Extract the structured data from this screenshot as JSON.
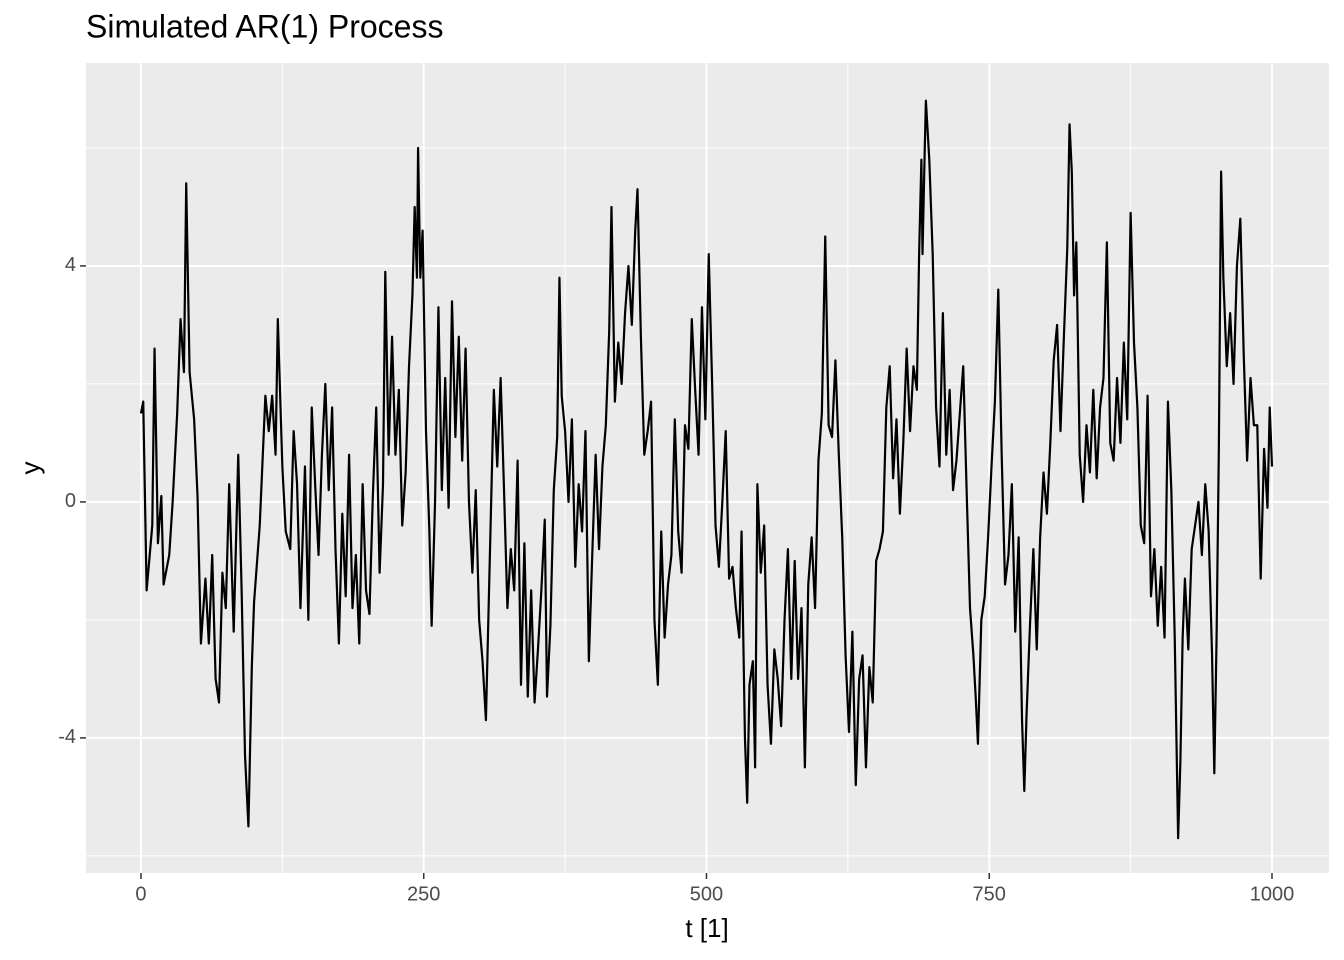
{
  "chart_data": {
    "type": "line",
    "title": "Simulated AR(1) Process",
    "x_label": "t [1]",
    "y_label": "y",
    "x": [
      0,
      2,
      5,
      10,
      12,
      15,
      18,
      20,
      25,
      28,
      32,
      35,
      38,
      40,
      43,
      47,
      50,
      53,
      57,
      60,
      63,
      66,
      69,
      72,
      75,
      78,
      82,
      86,
      89,
      92,
      95,
      98,
      100,
      105,
      110,
      113,
      116,
      119,
      121,
      125,
      128,
      132,
      135,
      138,
      141,
      145,
      148,
      151,
      154,
      157,
      160,
      163,
      166,
      169,
      172,
      175,
      178,
      181,
      184,
      187,
      190,
      193,
      196,
      199,
      202,
      205,
      208,
      211,
      214,
      216,
      219,
      222,
      225,
      228,
      231,
      234,
      237,
      240,
      242,
      244,
      245,
      247,
      249,
      252,
      255,
      257,
      260,
      263,
      266,
      269,
      272,
      275,
      278,
      281,
      284,
      287,
      290,
      293,
      296,
      299,
      302,
      305,
      308,
      312,
      315,
      318,
      321,
      324,
      327,
      330,
      333,
      336,
      339,
      342,
      345,
      348,
      351,
      354,
      357,
      359,
      362,
      365,
      368,
      370,
      372,
      375,
      378,
      381,
      384,
      387,
      390,
      393,
      396,
      399,
      402,
      405,
      408,
      411,
      414,
      416,
      419,
      422,
      425,
      428,
      431,
      434,
      437,
      439,
      442,
      445,
      448,
      451,
      454,
      457,
      460,
      463,
      466,
      469,
      472,
      475,
      478,
      481,
      484,
      487,
      490,
      493,
      496,
      499,
      502,
      505,
      508,
      511,
      514,
      517,
      520,
      523,
      526,
      529,
      531,
      534,
      536,
      538,
      541,
      543,
      545,
      548,
      551,
      554,
      557,
      560,
      563,
      566,
      569,
      572,
      575,
      578,
      581,
      584,
      587,
      590,
      593,
      596,
      599,
      602,
      605,
      608,
      611,
      614,
      617,
      620,
      623,
      626,
      629,
      632,
      635,
      638,
      641,
      644,
      647,
      650,
      653,
      656,
      659,
      662,
      665,
      668,
      671,
      674,
      677,
      680,
      683,
      686,
      688,
      690,
      691,
      693,
      694,
      697,
      700,
      703,
      706,
      709,
      712,
      715,
      718,
      721,
      724,
      727,
      730,
      733,
      736,
      738,
      740,
      743,
      746,
      749,
      752,
      755,
      758,
      761,
      764,
      767,
      770,
      773,
      776,
      779,
      781,
      783,
      786,
      789,
      792,
      795,
      798,
      801,
      804,
      807,
      810,
      813,
      816,
      819,
      821,
      823,
      825,
      827,
      830,
      833,
      836,
      839,
      842,
      845,
      848,
      851,
      854,
      857,
      860,
      863,
      866,
      869,
      872,
      875,
      878,
      881,
      884,
      887,
      890,
      893,
      896,
      899,
      902,
      905,
      908,
      911,
      914,
      917,
      919,
      921,
      923,
      926,
      929,
      932,
      935,
      938,
      941,
      944,
      947,
      949,
      951,
      953,
      955,
      957,
      960,
      963,
      966,
      969,
      972,
      975,
      978,
      981,
      984,
      987,
      990,
      993,
      996,
      998,
      1000
    ],
    "values": [
      1.5,
      1.7,
      -1.5,
      -0.4,
      2.6,
      -0.7,
      0.1,
      -1.4,
      -0.9,
      0,
      1.5,
      3.1,
      2.2,
      5.4,
      2.2,
      1.4,
      0.1,
      -2.4,
      -1.3,
      -2.4,
      -0.9,
      -3.0,
      -3.4,
      -1.2,
      -1.8,
      0.3,
      -2.2,
      0.8,
      -1.5,
      -4.3,
      -5.5,
      -2.8,
      -1.7,
      -0.4,
      1.8,
      1.2,
      1.8,
      0.8,
      3.1,
      0.6,
      -0.5,
      -0.8,
      1.2,
      0.3,
      -1.8,
      0.6,
      -2.0,
      1.6,
      0.3,
      -0.9,
      0.8,
      2.0,
      0.2,
      1.6,
      -0.8,
      -2.4,
      -0.2,
      -1.6,
      0.8,
      -1.8,
      -0.9,
      -2.4,
      0.3,
      -1.5,
      -1.9,
      0.1,
      1.6,
      -1.2,
      0.3,
      3.9,
      0.8,
      2.8,
      0.8,
      1.9,
      -0.4,
      0.5,
      2.3,
      3.5,
      5.0,
      3.8,
      6.0,
      3.8,
      4.6,
      1.2,
      -0.5,
      -2.1,
      0.0,
      3.3,
      0.2,
      2.1,
      -0.1,
      3.4,
      1.1,
      2.8,
      0.7,
      2.6,
      0.0,
      -1.2,
      0.2,
      -2.0,
      -2.7,
      -3.7,
      -1.3,
      1.9,
      0.6,
      2.1,
      0.2,
      -1.8,
      -0.8,
      -1.5,
      0.7,
      -3.1,
      -0.7,
      -3.3,
      -1.5,
      -3.4,
      -2.5,
      -1.5,
      -0.3,
      -3.3,
      -2.1,
      0.2,
      1.1,
      3.8,
      1.8,
      1.2,
      0.0,
      1.4,
      -1.1,
      0.3,
      -0.5,
      1.2,
      -2.7,
      -0.9,
      0.8,
      -0.8,
      0.6,
      1.3,
      2.9,
      5.0,
      1.7,
      2.7,
      2.0,
      3.2,
      4.0,
      3.0,
      4.6,
      5.3,
      2.8,
      0.8,
      1.2,
      1.7,
      -2.0,
      -3.1,
      -0.5,
      -2.3,
      -1.4,
      -0.9,
      1.4,
      -0.5,
      -1.2,
      1.3,
      0.9,
      3.1,
      1.9,
      0.8,
      3.3,
      1.4,
      4.2,
      2.0,
      -0.4,
      -1.1,
      0.0,
      1.2,
      -1.3,
      -1.1,
      -1.8,
      -2.3,
      -0.5,
      -4.0,
      -5.1,
      -3.1,
      -2.7,
      -4.5,
      0.3,
      -1.2,
      -0.4,
      -3.1,
      -4.1,
      -2.5,
      -3.0,
      -3.8,
      -2.0,
      -0.8,
      -3.0,
      -1.0,
      -3.0,
      -1.8,
      -4.5,
      -1.4,
      -0.6,
      -1.8,
      0.7,
      1.5,
      4.5,
      1.3,
      1.1,
      2.4,
      0.8,
      -0.6,
      -2.6,
      -3.9,
      -2.2,
      -4.8,
      -3.0,
      -2.6,
      -4.5,
      -2.8,
      -3.4,
      -1.0,
      -0.8,
      -0.5,
      1.6,
      2.3,
      0.4,
      1.4,
      -0.2,
      1.0,
      2.6,
      1.2,
      2.3,
      1.9,
      4.2,
      5.8,
      4.2,
      6.0,
      6.8,
      5.8,
      4.2,
      1.6,
      0.6,
      3.2,
      0.8,
      1.9,
      0.2,
      0.7,
      1.5,
      2.3,
      0.2,
      -1.8,
      -2.6,
      -3.3,
      -4.1,
      -2.0,
      -1.6,
      -0.6,
      0.6,
      1.7,
      3.6,
      0.8,
      -1.4,
      -0.9,
      0.3,
      -2.2,
      -0.6,
      -3.7,
      -4.9,
      -3.6,
      -2.1,
      -0.8,
      -2.5,
      -0.6,
      0.5,
      -0.2,
      1.0,
      2.4,
      3.0,
      1.2,
      2.8,
      4.3,
      6.4,
      5.6,
      3.5,
      4.4,
      0.8,
      0.0,
      1.3,
      0.5,
      1.9,
      0.4,
      1.6,
      2.1,
      4.4,
      1.0,
      0.7,
      2.1,
      1.0,
      2.7,
      1.4,
      4.9,
      2.7,
      1.6,
      -0.4,
      -0.7,
      1.8,
      -1.6,
      -0.8,
      -2.1,
      -1.1,
      -2.3,
      1.7,
      0.2,
      -2.3,
      -5.7,
      -4.4,
      -2.3,
      -1.3,
      -2.5,
      -0.8,
      -0.4,
      0.0,
      -0.9,
      0.3,
      -0.5,
      -2.6,
      -4.6,
      -2.3,
      0.9,
      5.6,
      3.8,
      2.3,
      3.2,
      2.0,
      4.0,
      4.8,
      2.5,
      0.7,
      2.1,
      1.3,
      1.3,
      -1.3,
      0.9,
      -0.1,
      1.6,
      0.6
    ],
    "color": "#000000",
    "xlim": [
      -48.6,
      1050.4
    ],
    "xticks": [
      0,
      250,
      500,
      750,
      1000
    ],
    "minor_xticks": [
      125,
      375,
      625,
      875
    ],
    "ylim": [
      -6.29,
      7.44
    ],
    "yticks": [
      -4,
      0,
      4
    ],
    "minor_yticks": [
      -6,
      -2,
      2,
      6
    ],
    "grid": true
  }
}
